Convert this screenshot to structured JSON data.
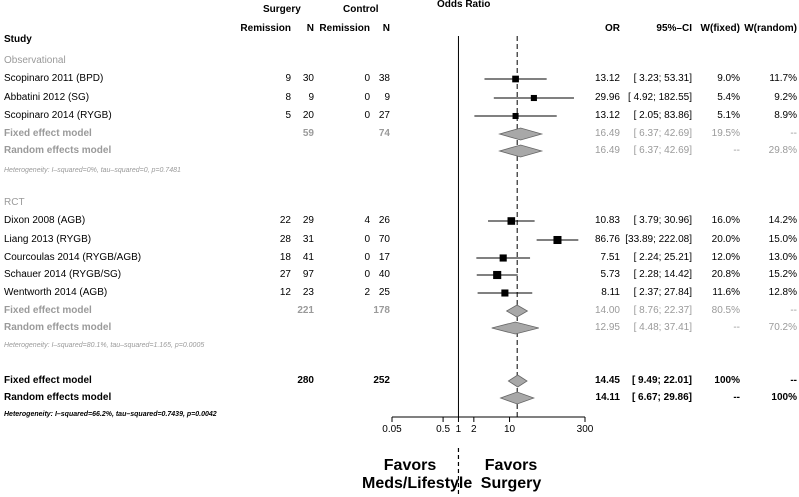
{
  "header": {
    "study": "Study",
    "surgery": "Surgery",
    "control": "Control",
    "remission": "Remission",
    "n": "N",
    "odds_ratio": "Odds Ratio",
    "or": "OR",
    "ci": "95%–CI",
    "w_fixed": "W(fixed)",
    "w_random": "W(random)"
  },
  "groups": [
    {
      "label": "Observational",
      "studies": [
        {
          "name": "Scopinaro 2011 (BPD)",
          "s_rem": "9",
          "s_n": "30",
          "c_rem": "0",
          "c_n": "38",
          "or": "13.12",
          "ci": "[ 3.23; 53.31]",
          "wf": "9.0%",
          "wr": "11.7%"
        },
        {
          "name": "Abbatini 2012 (SG)",
          "s_rem": "8",
          "s_n": "9",
          "c_rem": "0",
          "c_n": "9",
          "or": "29.96",
          "ci": "[ 4.92; 182.55]",
          "wf": "5.4%",
          "wr": "9.2%"
        },
        {
          "name": "Scopinaro 2014 (RYGB)",
          "s_rem": "5",
          "s_n": "20",
          "c_rem": "0",
          "c_n": "27",
          "or": "13.12",
          "ci": "[ 2.05; 83.86]",
          "wf": "5.1%",
          "wr": "8.9%"
        }
      ],
      "fixed": {
        "name": "Fixed effect model",
        "s_n": "59",
        "c_n": "74",
        "or": "16.49",
        "ci": "[ 6.37; 42.69]",
        "wf": "19.5%",
        "wr": "--"
      },
      "random": {
        "name": "Random effects model",
        "or": "16.49",
        "ci": "[ 6.37; 42.69]",
        "wf": "--",
        "wr": "29.8%"
      },
      "heterogeneity": "Heterogeneity: I–squared=0%, tau–squared=0, p=0.7481"
    },
    {
      "label": "RCT",
      "studies": [
        {
          "name": "Dixon 2008 (AGB)",
          "s_rem": "22",
          "s_n": "29",
          "c_rem": "4",
          "c_n": "26",
          "or": "10.83",
          "ci": "[ 3.79; 30.96]",
          "wf": "16.0%",
          "wr": "14.2%"
        },
        {
          "name": "Liang 2013 (RYGB)",
          "s_rem": "28",
          "s_n": "31",
          "c_rem": "0",
          "c_n": "70",
          "or": "86.76",
          "ci": "[33.89; 222.08]",
          "wf": "20.0%",
          "wr": "15.0%"
        },
        {
          "name": "Courcoulas 2014 (RYGB/AGB)",
          "s_rem": "18",
          "s_n": "41",
          "c_rem": "0",
          "c_n": "17",
          "or": "7.51",
          "ci": "[ 2.24; 25.21]",
          "wf": "12.0%",
          "wr": "13.0%"
        },
        {
          "name": "Schauer 2014 (RYGB/SG)",
          "s_rem": "27",
          "s_n": "97",
          "c_rem": "0",
          "c_n": "40",
          "or": "5.73",
          "ci": "[ 2.28; 14.42]",
          "wf": "20.8%",
          "wr": "15.2%"
        },
        {
          "name": "Wentworth 2014 (AGB)",
          "s_rem": "12",
          "s_n": "23",
          "c_rem": "2",
          "c_n": "25",
          "or": "8.11",
          "ci": "[ 2.37; 27.84]",
          "wf": "11.6%",
          "wr": "12.8%"
        }
      ],
      "fixed": {
        "name": "Fixed effect model",
        "s_n": "221",
        "c_n": "178",
        "or": "14.00",
        "ci": "[ 8.76; 22.37]",
        "wf": "80.5%",
        "wr": "--"
      },
      "random": {
        "name": "Random effects model",
        "or": "12.95",
        "ci": "[ 4.48; 37.41]",
        "wf": "--",
        "wr": "70.2%"
      },
      "heterogeneity": "Heterogeneity: I–squared=80.1%, tau–squared=1.165, p=0.0005"
    }
  ],
  "overall": {
    "fixed": {
      "name": "Fixed effect model",
      "s_n": "280",
      "c_n": "252",
      "or": "14.45",
      "ci": "[ 9.49; 22.01]",
      "wf": "100%",
      "wr": "--"
    },
    "random": {
      "name": "Random effects model",
      "or": "14.11",
      "ci": "[ 6.67; 29.86]",
      "wf": "--",
      "wr": "100%"
    },
    "heterogeneity": "Heterogeneity: I–squared=66.2%, tau–squared=0.7439, p=0.0042"
  },
  "axis": {
    "ticks": [
      {
        "value": 0.05,
        "label": "0.05"
      },
      {
        "value": 0.5,
        "label": "0.5"
      },
      {
        "value": 1,
        "label": "1"
      },
      {
        "value": 2,
        "label": "2"
      },
      {
        "value": 10,
        "label": "10"
      },
      {
        "value": 300,
        "label": "300"
      }
    ]
  },
  "favors": {
    "left": "Favors Meds/Lifestyle",
    "right": "Favors Surgery"
  },
  "colors": {
    "gray_text": "#9a9a9a",
    "diamond_fill": "#a8a8a8",
    "square_fill": "#000000"
  },
  "chart_data": {
    "type": "forest",
    "title": "Odds Ratio",
    "scale": "log",
    "xlim": [
      0.05,
      300
    ],
    "reference_line": 1,
    "overall_line": 14.11,
    "studies": [
      {
        "name": "Scopinaro 2011 (BPD)",
        "or": 13.12,
        "lower": 3.23,
        "upper": 53.31,
        "weight_fixed": 9.0
      },
      {
        "name": "Abbatini 2012 (SG)",
        "or": 29.96,
        "lower": 4.92,
        "upper": 182.55,
        "weight_fixed": 5.4
      },
      {
        "name": "Scopinaro 2014 (RYGB)",
        "or": 13.12,
        "lower": 2.05,
        "upper": 83.86,
        "weight_fixed": 5.1
      },
      {
        "name": "Dixon 2008 (AGB)",
        "or": 10.83,
        "lower": 3.79,
        "upper": 30.96,
        "weight_fixed": 16.0
      },
      {
        "name": "Liang 2013 (RYGB)",
        "or": 86.76,
        "lower": 33.89,
        "upper": 222.08,
        "weight_fixed": 20.0
      },
      {
        "name": "Courcoulas 2014 (RYGB/AGB)",
        "or": 7.51,
        "lower": 2.24,
        "upper": 25.21,
        "weight_fixed": 12.0
      },
      {
        "name": "Schauer 2014 (RYGB/SG)",
        "or": 5.73,
        "lower": 2.28,
        "upper": 14.42,
        "weight_fixed": 20.8
      },
      {
        "name": "Wentworth 2014 (AGB)",
        "or": 8.11,
        "lower": 2.37,
        "upper": 27.84,
        "weight_fixed": 11.6
      }
    ],
    "summaries": [
      {
        "name": "Observational fixed",
        "or": 16.49,
        "lower": 6.37,
        "upper": 42.69
      },
      {
        "name": "Observational random",
        "or": 16.49,
        "lower": 6.37,
        "upper": 42.69
      },
      {
        "name": "RCT fixed",
        "or": 14.0,
        "lower": 8.76,
        "upper": 22.37
      },
      {
        "name": "RCT random",
        "or": 12.95,
        "lower": 4.48,
        "upper": 37.41
      },
      {
        "name": "Overall fixed",
        "or": 14.45,
        "lower": 9.49,
        "upper": 22.01
      },
      {
        "name": "Overall random",
        "or": 14.11,
        "lower": 6.67,
        "upper": 29.86
      }
    ]
  }
}
